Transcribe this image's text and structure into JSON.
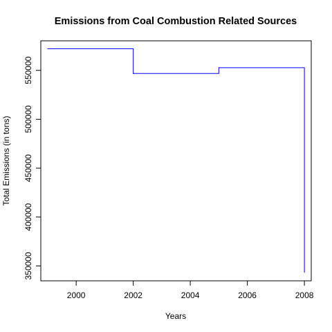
{
  "chart_data": {
    "type": "line",
    "step": "post",
    "title": "Emissions from Coal Combustion Related Sources",
    "xlabel": "Years",
    "ylabel": "Total Emissions (in tons)",
    "x": [
      1999,
      2002,
      2005,
      2008
    ],
    "series": [
      {
        "values": [
          572100,
          546800,
          552700,
          343400
        ],
        "color": "#0000ff"
      }
    ],
    "xlim": [
      1998.76,
      2008.24
    ],
    "ylim": [
      334800,
      580200
    ],
    "xticks": [
      2000,
      2002,
      2004,
      2006,
      2008
    ],
    "yticks": [
      350000,
      400000,
      450000,
      500000,
      550000
    ],
    "grid": false,
    "legend": "none"
  }
}
